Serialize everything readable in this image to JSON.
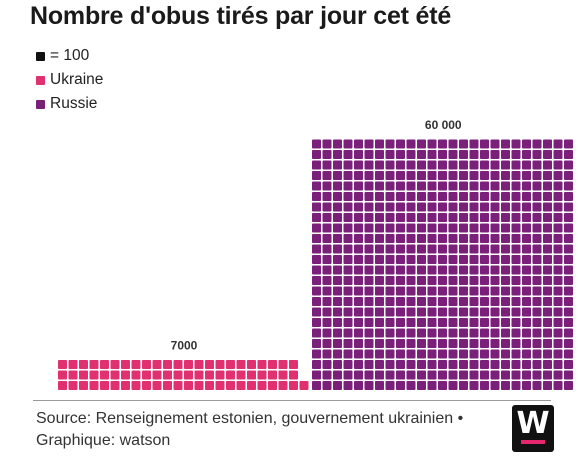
{
  "title": "Nombre d'obus tirés par jour cet été",
  "legend": [
    {
      "label": "= 100",
      "color": "#111111"
    },
    {
      "label": "Ukraine",
      "color": "#e0306f"
    },
    {
      "label": "Russie",
      "color": "#7a1f7a"
    }
  ],
  "chart_data": {
    "type": "waffle",
    "unit_per_square": 100,
    "categories": [
      "Ukraine",
      "Russie"
    ],
    "values": [
      7000,
      60000
    ],
    "value_labels": [
      "7000",
      "60 000"
    ],
    "colors": [
      "#e0306f",
      "#7a1f7a"
    ]
  },
  "source": "Source: Renseignement estonien, gouvernement ukrainien • Graphique: watson",
  "logo": {
    "letter": "W",
    "accent": "#e6266e"
  }
}
